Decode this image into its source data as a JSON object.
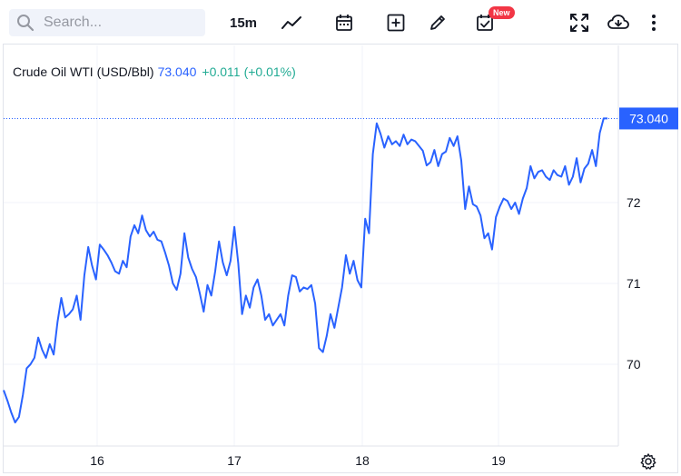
{
  "toolbar": {
    "search_placeholder": "Search...",
    "interval": "15m",
    "new_badge": "New",
    "icons": [
      "search-icon",
      "line-chart-icon",
      "calendar-icon",
      "add-indicator-icon",
      "draw-pencil-icon",
      "economic-calendar-icon",
      "fullscreen-icon",
      "cloud-download-icon",
      "more-vertical-icon",
      "settings-gear-icon"
    ]
  },
  "legend": {
    "symbol": "Crude Oil WTI (USD/Bbl)",
    "price": "73.040",
    "change": "+0.011",
    "change_pct": "(+0.01%)"
  },
  "colors": {
    "line": "#2962ff",
    "positive": "#22ab94",
    "badge": "#f23645",
    "grid": "#f0f3fa"
  },
  "chart_data": {
    "type": "line",
    "title": "",
    "xlabel": "",
    "ylabel": "",
    "x_ticks": [
      "16",
      "17",
      "18",
      "19"
    ],
    "y_ticks": [
      "70",
      "71",
      "72"
    ],
    "ylim": [
      69.1,
      73.4
    ],
    "last_value_label": "73.040",
    "grid": true,
    "series": [
      {
        "values": [
          69.68,
          69.55,
          69.4,
          69.28,
          69.35,
          69.62,
          69.95,
          70.0,
          70.08,
          70.33,
          70.18,
          70.08,
          70.25,
          70.12,
          70.52,
          70.82,
          70.58,
          70.62,
          70.68,
          70.85,
          70.55,
          71.1,
          71.45,
          71.22,
          71.05,
          71.48,
          71.42,
          71.35,
          71.26,
          71.15,
          71.12,
          71.28,
          71.2,
          71.58,
          71.72,
          71.62,
          71.84,
          71.66,
          71.58,
          71.64,
          71.54,
          71.52,
          71.38,
          71.22,
          71.0,
          70.92,
          71.12,
          71.62,
          71.32,
          71.18,
          71.08,
          70.88,
          70.65,
          70.98,
          70.85,
          71.15,
          71.52,
          71.26,
          71.1,
          71.28,
          71.7,
          71.25,
          70.62,
          70.85,
          70.7,
          70.95,
          71.05,
          70.85,
          70.55,
          70.62,
          70.48,
          70.55,
          70.62,
          70.48,
          70.85,
          71.1,
          71.08,
          70.9,
          70.95,
          70.93,
          70.98,
          70.75,
          70.2,
          70.15,
          70.35,
          70.62,
          70.45,
          70.7,
          70.95,
          71.35,
          71.12,
          71.28,
          71.04,
          70.95,
          71.8,
          71.62,
          72.6,
          72.98,
          72.85,
          72.68,
          72.82,
          72.72,
          72.76,
          72.7,
          72.84,
          72.72,
          72.78,
          72.76,
          72.7,
          72.64,
          72.46,
          72.5,
          72.65,
          72.45,
          72.6,
          72.63,
          72.8,
          72.7,
          72.82,
          72.52,
          71.92,
          72.2,
          71.98,
          71.95,
          71.84,
          71.56,
          71.62,
          71.42,
          71.82,
          71.95,
          72.05,
          72.02,
          71.92,
          72.0,
          71.86,
          72.05,
          72.18,
          72.45,
          72.3,
          72.38,
          72.4,
          72.32,
          72.28,
          72.4,
          72.34,
          72.32,
          72.45,
          72.22,
          72.32,
          72.55,
          72.25,
          72.42,
          72.48,
          72.65,
          72.45,
          72.86,
          73.04,
          73.04
        ]
      }
    ]
  }
}
